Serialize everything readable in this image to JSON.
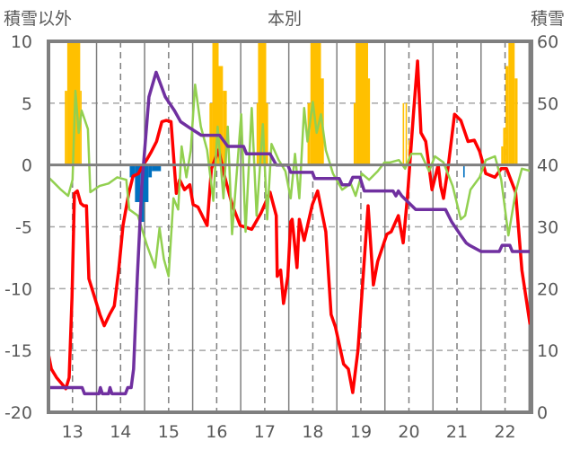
{
  "chart_data": {
    "type": "line",
    "title": "本別",
    "ylabel_left": "積雪以外",
    "ylabel_right": "積雪",
    "xlim": [
      12.5,
      22.55
    ],
    "ylim_left": [
      -20,
      10
    ],
    "ylim_right": [
      0,
      60
    ],
    "x_ticks": [
      13,
      14,
      15,
      16,
      17,
      18,
      19,
      20,
      21,
      22
    ],
    "y_ticks_left": [
      10,
      5,
      0,
      -5,
      -10,
      -15,
      -20
    ],
    "y_ticks_right": [
      60,
      50,
      40,
      30,
      20,
      10,
      0
    ],
    "grid": true,
    "series": [
      {
        "name": "red",
        "axis": "left",
        "color": "#ff0000",
        "points": [
          [
            12.5,
            -15.3
          ],
          [
            12.56,
            -16.5
          ],
          [
            12.67,
            -17.2
          ],
          [
            12.8,
            -17.8
          ],
          [
            12.86,
            -18.1
          ],
          [
            12.93,
            -17.2
          ],
          [
            12.99,
            -10.7
          ],
          [
            13.04,
            -2.3
          ],
          [
            13.1,
            -2.1
          ],
          [
            13.17,
            -3.1
          ],
          [
            13.23,
            -3.3
          ],
          [
            13.29,
            -3.3
          ],
          [
            13.34,
            -9.2
          ],
          [
            13.46,
            -10.7
          ],
          [
            13.57,
            -12.1
          ],
          [
            13.66,
            -13
          ],
          [
            13.77,
            -12.1
          ],
          [
            13.87,
            -11.4
          ],
          [
            13.96,
            -8.5
          ],
          [
            14.05,
            -4.9
          ],
          [
            14.17,
            -2.3
          ],
          [
            14.26,
            -0.9
          ],
          [
            14.37,
            -0.7
          ],
          [
            14.45,
            -0.1
          ],
          [
            14.54,
            0.4
          ],
          [
            14.63,
            1
          ],
          [
            14.75,
            1.9
          ],
          [
            14.86,
            3.5
          ],
          [
            14.95,
            3.6
          ],
          [
            15.05,
            3.5
          ],
          [
            15.16,
            -2.3
          ],
          [
            15.23,
            -1.2
          ],
          [
            15.33,
            -2
          ],
          [
            15.44,
            -1.6
          ],
          [
            15.51,
            -3.2
          ],
          [
            15.61,
            -3.4
          ],
          [
            15.8,
            -4.9
          ],
          [
            15.89,
            -0.3
          ],
          [
            16.04,
            1.2
          ],
          [
            16.17,
            -1
          ],
          [
            16.32,
            -3.2
          ],
          [
            16.49,
            -4.9
          ],
          [
            16.73,
            -5.2
          ],
          [
            16.92,
            -3.9
          ],
          [
            17.11,
            -2.2
          ],
          [
            17.24,
            -4.1
          ],
          [
            17.26,
            -9
          ],
          [
            17.33,
            -8.5
          ],
          [
            17.39,
            -11.2
          ],
          [
            17.48,
            -9
          ],
          [
            17.54,
            -4.6
          ],
          [
            17.57,
            -4.4
          ],
          [
            17.67,
            -8.3
          ],
          [
            17.72,
            -4.4
          ],
          [
            17.82,
            -6.1
          ],
          [
            17.99,
            -3.2
          ],
          [
            18.1,
            -2.1
          ],
          [
            18.27,
            -5.4
          ],
          [
            18.38,
            -12.1
          ],
          [
            18.47,
            -13.1
          ],
          [
            18.64,
            -16.1
          ],
          [
            18.74,
            -16.5
          ],
          [
            18.83,
            -18.4
          ],
          [
            18.94,
            -15
          ],
          [
            19.15,
            -3.3
          ],
          [
            19.26,
            -9.7
          ],
          [
            19.35,
            -7.8
          ],
          [
            19.54,
            -5.6
          ],
          [
            19.63,
            -5.4
          ],
          [
            19.78,
            -4.1
          ],
          [
            19.88,
            -6.3
          ],
          [
            19.97,
            -2.5
          ],
          [
            20.1,
            4.4
          ],
          [
            20.18,
            8.4
          ],
          [
            20.25,
            2.6
          ],
          [
            20.35,
            1.9
          ],
          [
            20.48,
            -2
          ],
          [
            20.61,
            0
          ],
          [
            20.66,
            -1.7
          ],
          [
            20.72,
            -2.7
          ],
          [
            20.81,
            -0.3
          ],
          [
            20.95,
            4.1
          ],
          [
            21.08,
            3.6
          ],
          [
            21.23,
            1.9
          ],
          [
            21.36,
            2
          ],
          [
            21.47,
            1.1
          ],
          [
            21.6,
            -0.7
          ],
          [
            21.79,
            -1
          ],
          [
            21.92,
            -0.3
          ],
          [
            22.03,
            -0.3
          ],
          [
            22.22,
            -2.2
          ],
          [
            22.35,
            -8.5
          ],
          [
            22.52,
            -12.9
          ]
        ]
      },
      {
        "name": "green",
        "axis": "left",
        "color": "#92d050",
        "points": [
          [
            12.5,
            -1
          ],
          [
            12.63,
            -1.5
          ],
          [
            12.76,
            -2
          ],
          [
            12.91,
            -2.5
          ],
          [
            13.0,
            -1.2
          ],
          [
            13.06,
            6
          ],
          [
            13.13,
            2.6
          ],
          [
            13.19,
            4.4
          ],
          [
            13.32,
            2.9
          ],
          [
            13.37,
            -2.2
          ],
          [
            13.56,
            -1.7
          ],
          [
            13.75,
            -1.5
          ],
          [
            13.93,
            -1
          ],
          [
            14.12,
            -1.2
          ],
          [
            14.18,
            -3.6
          ],
          [
            14.36,
            -4.1
          ],
          [
            14.55,
            -6.5
          ],
          [
            14.72,
            -8.3
          ],
          [
            14.81,
            -5.1
          ],
          [
            14.9,
            -7.6
          ],
          [
            15.0,
            -9
          ],
          [
            15.1,
            -2.7
          ],
          [
            15.2,
            -3.6
          ],
          [
            15.27,
            1.5
          ],
          [
            15.37,
            -1
          ],
          [
            15.46,
            1.2
          ],
          [
            15.55,
            6.5
          ],
          [
            15.67,
            3.1
          ],
          [
            15.8,
            1.2
          ],
          [
            15.93,
            -2.9
          ],
          [
            16.02,
            3.1
          ],
          [
            16.14,
            -2.7
          ],
          [
            16.23,
            3.1
          ],
          [
            16.32,
            -5.6
          ],
          [
            16.51,
            4.1
          ],
          [
            16.6,
            -5.4
          ],
          [
            16.73,
            4.6
          ],
          [
            16.83,
            -4.1
          ],
          [
            16.96,
            3.3
          ],
          [
            17.05,
            -4.4
          ],
          [
            17.14,
            1.7
          ],
          [
            17.29,
            0.4
          ],
          [
            17.43,
            -0.5
          ],
          [
            17.54,
            -2.7
          ],
          [
            17.63,
            0.9
          ],
          [
            17.72,
            -2.7
          ],
          [
            17.82,
            4.6
          ],
          [
            17.89,
            1.9
          ],
          [
            18.0,
            5.1
          ],
          [
            18.08,
            2.6
          ],
          [
            18.17,
            4.1
          ],
          [
            18.27,
            1.2
          ],
          [
            18.42,
            -0.7
          ],
          [
            18.61,
            -2
          ],
          [
            18.79,
            -1.5
          ],
          [
            18.89,
            -2.5
          ],
          [
            19.02,
            -0.7
          ],
          [
            19.17,
            -1.2
          ],
          [
            19.35,
            -0.5
          ],
          [
            19.49,
            0.2
          ],
          [
            19.6,
            0.2
          ],
          [
            19.79,
            0.4
          ],
          [
            19.92,
            -0.3
          ],
          [
            20.05,
            0.9
          ],
          [
            20.25,
            0.9
          ],
          [
            20.42,
            -0.5
          ],
          [
            20.54,
            0.7
          ],
          [
            20.72,
            0.2
          ],
          [
            20.91,
            -1.7
          ],
          [
            21.08,
            -4.4
          ],
          [
            21.17,
            -4.1
          ],
          [
            21.28,
            -2
          ],
          [
            21.47,
            -1
          ],
          [
            21.6,
            0.4
          ],
          [
            21.79,
            0.7
          ],
          [
            21.92,
            -1.2
          ],
          [
            22.07,
            -5.7
          ],
          [
            22.22,
            -2.2
          ],
          [
            22.35,
            -0.3
          ],
          [
            22.54,
            -0.5
          ]
        ]
      },
      {
        "name": "purple",
        "axis": "right",
        "color": "#7030a0",
        "points": [
          [
            12.5,
            4
          ],
          [
            13.2,
            4
          ],
          [
            13.25,
            3
          ],
          [
            13.55,
            3
          ],
          [
            13.58,
            4
          ],
          [
            13.62,
            3
          ],
          [
            13.75,
            3
          ],
          [
            13.78,
            4
          ],
          [
            13.82,
            3
          ],
          [
            14.0,
            3
          ],
          [
            14.1,
            3
          ],
          [
            14.15,
            4
          ],
          [
            14.22,
            4
          ],
          [
            14.27,
            7
          ],
          [
            14.35,
            22
          ],
          [
            14.44,
            36.6
          ],
          [
            14.59,
            51
          ],
          [
            14.74,
            55
          ],
          [
            14.93,
            51
          ],
          [
            15.12,
            48.8
          ],
          [
            15.25,
            47
          ],
          [
            15.44,
            46
          ],
          [
            15.68,
            44.8
          ],
          [
            16.06,
            44.8
          ],
          [
            16.23,
            43
          ],
          [
            16.56,
            43
          ],
          [
            16.62,
            41.8
          ],
          [
            17.11,
            41.8
          ],
          [
            17.24,
            40
          ],
          [
            17.48,
            40
          ],
          [
            17.54,
            38.8
          ],
          [
            17.99,
            38.8
          ],
          [
            18.04,
            37.8
          ],
          [
            18.55,
            37.8
          ],
          [
            18.61,
            36.8
          ],
          [
            18.76,
            36.8
          ],
          [
            18.83,
            38
          ],
          [
            18.98,
            38
          ],
          [
            19.07,
            35.8
          ],
          [
            19.67,
            35.8
          ],
          [
            19.73,
            35
          ],
          [
            19.78,
            35.8
          ],
          [
            19.85,
            35
          ],
          [
            20.14,
            32.8
          ],
          [
            20.76,
            32.8
          ],
          [
            20.89,
            30.8
          ],
          [
            21.08,
            28.6
          ],
          [
            21.19,
            27.4
          ],
          [
            21.26,
            27
          ],
          [
            21.5,
            26
          ],
          [
            21.88,
            26
          ],
          [
            21.94,
            27
          ],
          [
            22.1,
            27
          ],
          [
            22.15,
            26
          ],
          [
            22.55,
            26
          ]
        ]
      }
    ],
    "bars": [
      {
        "name": "yellow",
        "axis": "left",
        "color": "#ffc000",
        "items": [
          [
            12.84,
            12.89,
            6
          ],
          [
            12.89,
            13.16,
            12
          ],
          [
            13.16,
            13.19,
            6
          ],
          [
            15.85,
            15.91,
            5
          ],
          [
            15.91,
            16.04,
            12
          ],
          [
            16.04,
            16.13,
            8
          ],
          [
            16.13,
            16.21,
            6
          ],
          [
            16.83,
            16.86,
            5
          ],
          [
            16.86,
            17.03,
            12
          ],
          [
            17.03,
            17.07,
            5
          ],
          [
            17.89,
            17.95,
            5
          ],
          [
            17.95,
            18.17,
            12
          ],
          [
            18.17,
            18.23,
            7
          ],
          [
            18.85,
            18.89,
            5
          ],
          [
            18.89,
            19.15,
            12
          ],
          [
            19.15,
            19.19,
            7
          ],
          [
            19.87,
            19.9,
            5
          ],
          [
            19.93,
            19.96,
            5
          ],
          [
            19.99,
            20.01,
            2
          ],
          [
            21.92,
            21.96,
            1.5
          ],
          [
            21.96,
            22.01,
            3
          ],
          [
            22.01,
            22.07,
            8
          ],
          [
            22.07,
            22.2,
            12
          ],
          [
            22.2,
            22.26,
            7
          ]
        ]
      },
      {
        "name": "blue",
        "axis": "left",
        "color": "#0070c0",
        "items": [
          [
            14.19,
            14.3,
            -1
          ],
          [
            14.3,
            14.41,
            -3
          ],
          [
            14.41,
            14.49,
            -4.6
          ],
          [
            14.49,
            14.58,
            -3
          ],
          [
            14.58,
            14.65,
            -1
          ],
          [
            14.65,
            14.84,
            -0.5
          ],
          [
            21.13,
            21.16,
            -1
          ]
        ]
      }
    ]
  }
}
